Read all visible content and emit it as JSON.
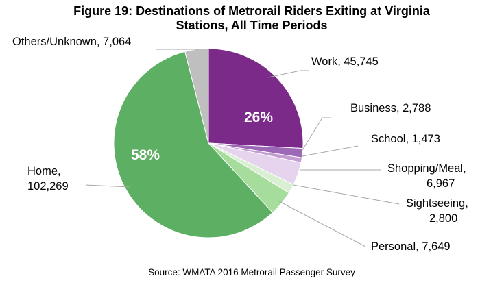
{
  "chart_data": {
    "type": "pie",
    "title_lines": [
      "Figure 19: Destinations of Metrorail Riders Exiting at Virginia",
      "Stations, All Time Periods"
    ],
    "source": "Source: WMATA 2016 Metrorail Passenger Survey",
    "slices": [
      {
        "name": "Work",
        "value": 45745,
        "color": "#7b2a8a",
        "label_lines": [
          "Work, 45,745"
        ],
        "pct_label": "26%"
      },
      {
        "name": "Business",
        "value": 2788,
        "color": "#9b69b5",
        "label_lines": [
          "Business, 2,788"
        ],
        "pct_label": ""
      },
      {
        "name": "School",
        "value": 1473,
        "color": "#c49ed2",
        "label_lines": [
          "School, 1,473"
        ],
        "pct_label": ""
      },
      {
        "name": "Shopping/Meal",
        "value": 6967,
        "color": "#e6d3ee",
        "label_lines": [
          "Shopping/Meal,",
          "6,967"
        ],
        "pct_label": ""
      },
      {
        "name": "Sightseeing",
        "value": 2800,
        "color": "#d8efd2",
        "label_lines": [
          "Sightseeing,",
          "2,800"
        ],
        "pct_label": ""
      },
      {
        "name": "Personal",
        "value": 7649,
        "color": "#a6dc9c",
        "label_lines": [
          "Personal, 7,649"
        ],
        "pct_label": ""
      },
      {
        "name": "Home",
        "value": 102269,
        "color": "#5daf63",
        "label_lines": [
          "Home,",
          "102,269"
        ],
        "pct_label": "58%"
      },
      {
        "name": "Others/Unknown",
        "value": 7064,
        "color": "#bfbfbf",
        "label_lines": [
          "Others/Unknown, 7,064"
        ],
        "pct_label": ""
      }
    ]
  }
}
